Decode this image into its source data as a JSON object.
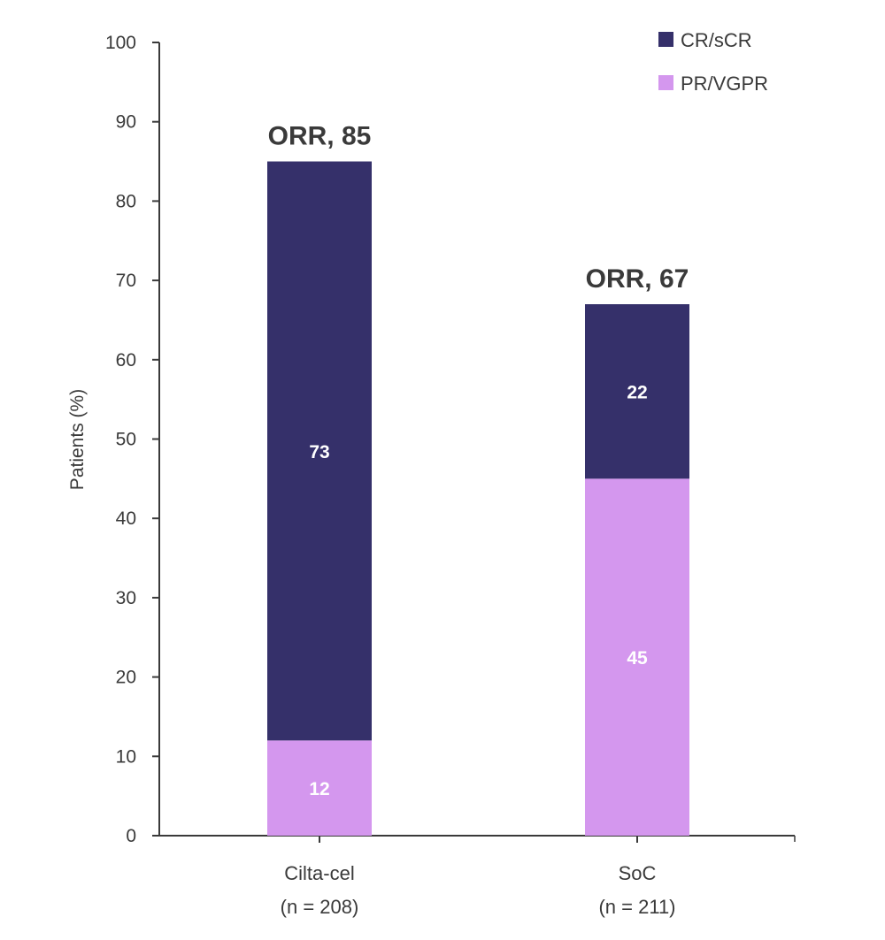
{
  "chart_data": {
    "type": "bar",
    "stacked": true,
    "title": "",
    "xlabel": "",
    "ylabel": "Patients (%)",
    "ylim": [
      0,
      100
    ],
    "yticks": [
      0,
      10,
      20,
      30,
      40,
      50,
      60,
      70,
      80,
      90,
      100
    ],
    "grid": false,
    "legend_position": "top-right",
    "categories": [
      "Cilta-cel",
      "SoC"
    ],
    "category_sublabels": [
      "(n = 208)",
      "(n = 211)"
    ],
    "series": [
      {
        "name": "PR/VGPR",
        "color": "#d497ee",
        "values": [
          12,
          45
        ]
      },
      {
        "name": "CR/sCR",
        "color": "#35306a",
        "values": [
          73,
          22
        ]
      }
    ],
    "totals": [
      85,
      67
    ],
    "total_labels": [
      "ORR, 85",
      "ORR, 67"
    ]
  }
}
